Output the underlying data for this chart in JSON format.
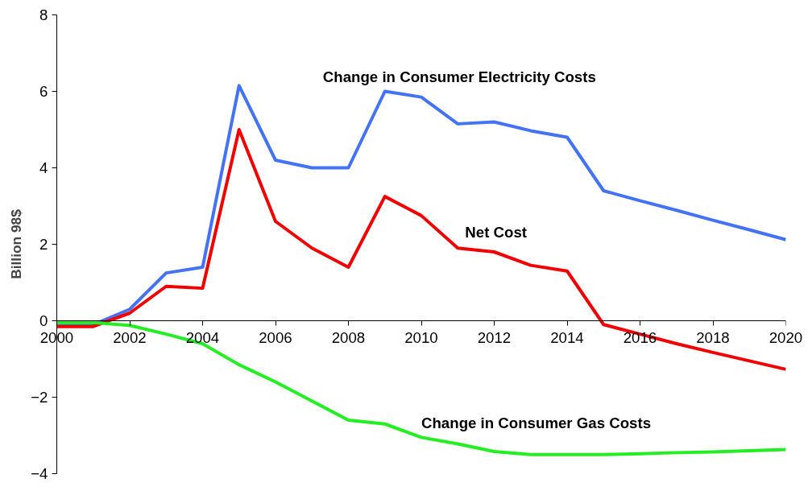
{
  "chart_data": {
    "type": "line",
    "ylabel": "Billion 98$",
    "x": [
      2000,
      2001,
      2002,
      2003,
      2004,
      2005,
      2006,
      2007,
      2008,
      2009,
      2010,
      2011,
      2012,
      2013,
      2014,
      2015,
      2016,
      2017,
      2018,
      2019,
      2020
    ],
    "xlim": [
      2000,
      2020
    ],
    "xticks": [
      2000,
      2002,
      2004,
      2006,
      2008,
      2010,
      2012,
      2014,
      2016,
      2018,
      2020
    ],
    "ylim": [
      -4,
      8
    ],
    "yticks": [
      -4,
      -2,
      0,
      2,
      4,
      6,
      8
    ],
    "grid": false,
    "legend": false,
    "marker": "none",
    "line_style": "solid",
    "series": [
      {
        "name": "Change in Consumer Electricity Costs",
        "color": "#4472f4",
        "values": [
          -0.1,
          -0.1,
          0.3,
          1.25,
          1.4,
          6.15,
          4.2,
          4.0,
          4.0,
          6.0,
          5.85,
          5.15,
          5.2,
          4.97,
          4.8,
          3.4,
          3.14,
          2.89,
          2.63,
          2.38,
          2.12
        ]
      },
      {
        "name": "Net Cost",
        "color": "#f00000",
        "values": [
          -0.15,
          -0.15,
          0.2,
          0.9,
          0.85,
          5.0,
          2.6,
          1.9,
          1.4,
          3.25,
          2.75,
          1.9,
          1.8,
          1.45,
          1.3,
          -0.1,
          -0.35,
          -0.6,
          -0.83,
          -1.05,
          -1.27
        ]
      },
      {
        "name": "Change in Consumer Gas Costs",
        "color": "#22ee22",
        "values": [
          -0.05,
          -0.05,
          -0.12,
          -0.35,
          -0.6,
          -1.15,
          -1.6,
          -2.1,
          -2.6,
          -2.7,
          -3.05,
          -3.22,
          -3.42,
          -3.5,
          -3.5,
          -3.5,
          -3.48,
          -3.45,
          -3.43,
          -3.4,
          -3.37
        ]
      }
    ]
  }
}
